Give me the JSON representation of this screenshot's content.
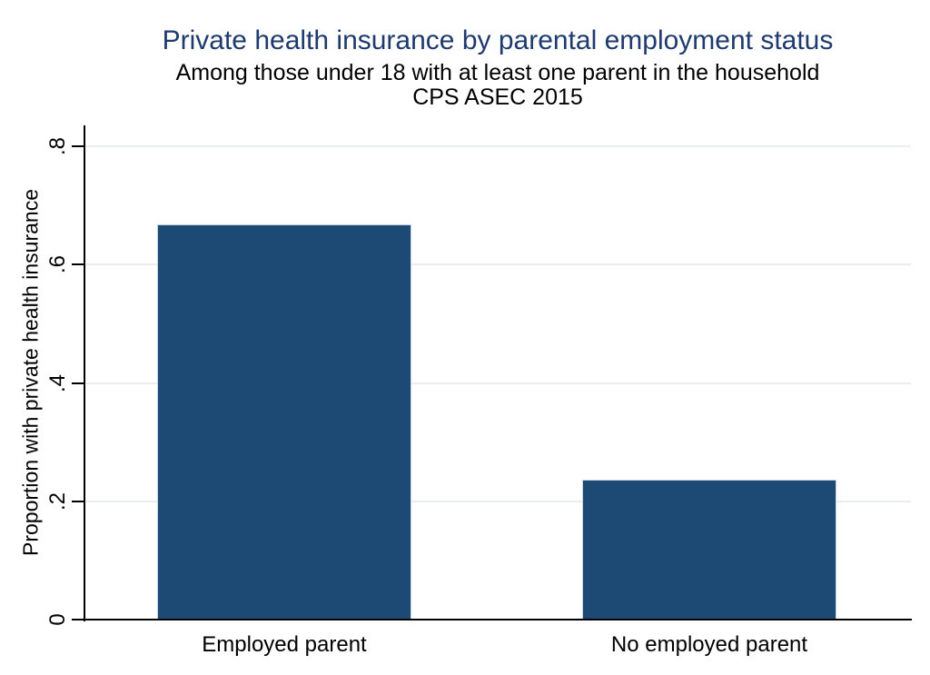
{
  "chart_data": {
    "type": "bar",
    "title": "Private health insurance by parental employment status",
    "subtitle": "Among those under 18 with at least one parent in the household",
    "subtitle2": "CPS ASEC 2015",
    "categories": [
      "Employed parent",
      "No employed parent"
    ],
    "values": [
      0.667,
      0.235
    ],
    "xlabel": "",
    "ylabel": "Proportion with private health insurance",
    "ylim": [
      0,
      0.8
    ],
    "ytick_labels": [
      "0",
      ".2",
      ".4",
      ".6",
      ".8"
    ],
    "ytick_values": [
      0,
      0.2,
      0.4,
      0.6,
      0.8
    ],
    "grid": true,
    "legend_position": "none",
    "bar_color": "#1c4a75",
    "bar_outline_color": "#c5d4e2",
    "title_color": "#1e3a6e",
    "grid_color": "#e8eef4",
    "axis_color": "#000000"
  }
}
